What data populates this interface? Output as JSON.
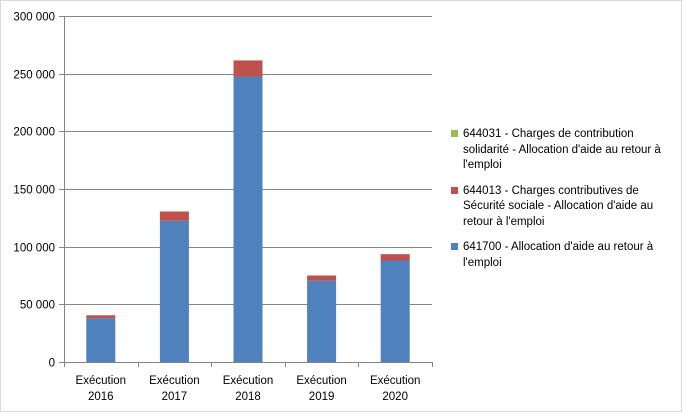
{
  "chart_data": {
    "type": "bar",
    "stacked": true,
    "categories": [
      "Exécution 2016",
      "Exécution 2017",
      "Exécution 2018",
      "Exécution 2019",
      "Exécution 2020"
    ],
    "category_lines": [
      [
        "Exécution",
        "2016"
      ],
      [
        "Exécution",
        "2017"
      ],
      [
        "Exécution",
        "2018"
      ],
      [
        "Exécution",
        "2019"
      ],
      [
        "Exécution",
        "2020"
      ]
    ],
    "series": [
      {
        "name": "641700 - Allocation d'aide au retour à l'emploi",
        "color": "#4f81bd",
        "values": [
          38000,
          122500,
          247500,
          70500,
          88000
        ]
      },
      {
        "name": "644013 - Charges contributives de Sécurité sociale - Allocation d'aide au retour à l'emploi",
        "color": "#c0504d",
        "values": [
          2500,
          8000,
          14000,
          4500,
          5500
        ]
      },
      {
        "name": "644031 - Charges de contribution solidarité - Allocation d'aide au retour à l'emploi",
        "color": "#9bbb59",
        "values": [
          0,
          0,
          0,
          0,
          0
        ]
      }
    ],
    "ylim": [
      0,
      300000
    ],
    "yticks": [
      0,
      50000,
      100000,
      150000,
      200000,
      250000,
      300000
    ],
    "ytick_labels": [
      "0",
      "50 000",
      "100 000",
      "150 000",
      "200 000",
      "250 000",
      "300 000"
    ],
    "grid": true,
    "legend_position": "right",
    "legend_order": [
      2,
      1,
      0
    ]
  }
}
